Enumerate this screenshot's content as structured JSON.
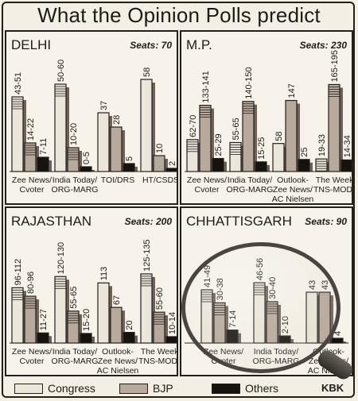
{
  "title": "What the Opinion Polls predict",
  "colors": {
    "congress": "#ece6da",
    "bjp": "#b7a99b",
    "others": "#15120f",
    "ink": "#231f1c"
  },
  "legend": [
    {
      "key": "congress",
      "label": "Congress"
    },
    {
      "key": "bjp",
      "label": "BJP"
    },
    {
      "key": "others",
      "label": "Others"
    }
  ],
  "credit": "KBK",
  "chart_data": [
    {
      "type": "bar",
      "title": "DELHI",
      "seats_label": "Seats: 70",
      "ylim": [
        0,
        70
      ],
      "groups": [
        {
          "label": [
            "Zee News/",
            "Cvoter"
          ],
          "bars": [
            {
              "party": "congress",
              "label": "43-51",
              "value": 47
            },
            {
              "party": "bjp",
              "label": "14-22",
              "value": 18
            },
            {
              "party": "others",
              "label": "7-11",
              "value": 9
            }
          ]
        },
        {
          "label": [
            "India Today/",
            "ORG-MARG"
          ],
          "bars": [
            {
              "party": "congress",
              "label": "50-60",
              "value": 55
            },
            {
              "party": "bjp",
              "label": "10-20",
              "value": 15
            },
            {
              "party": "others",
              "label": "0-5",
              "value": 3
            }
          ]
        },
        {
          "label": [
            "TOI/DRS"
          ],
          "bars": [
            {
              "party": "congress",
              "label": "37",
              "value": 37
            },
            {
              "party": "bjp",
              "label": "28",
              "value": 28
            },
            {
              "party": "others",
              "label": "5",
              "value": 5
            }
          ]
        },
        {
          "label": [
            "HT/CSDS"
          ],
          "bars": [
            {
              "party": "congress",
              "label": "58",
              "value": 58
            },
            {
              "party": "bjp",
              "label": "10",
              "value": 10
            },
            {
              "party": "others",
              "label": "2",
              "value": 2
            }
          ]
        }
      ]
    },
    {
      "type": "bar",
      "title": "M.P.",
      "seats_label": "Seats: 230",
      "ylim": [
        0,
        230
      ],
      "groups": [
        {
          "label": [
            "Zee News/",
            "Cvoter"
          ],
          "bars": [
            {
              "party": "congress",
              "label": "62-70",
              "value": 66
            },
            {
              "party": "bjp",
              "label": "133-141",
              "value": 137
            },
            {
              "party": "others",
              "label": "25-29",
              "value": 27
            }
          ]
        },
        {
          "label": [
            "India Today/",
            "ORG-MARG"
          ],
          "bars": [
            {
              "party": "congress",
              "label": "55-65",
              "value": 60
            },
            {
              "party": "bjp",
              "label": "140-150",
              "value": 145
            },
            {
              "party": "others",
              "label": "15-25",
              "value": 20
            }
          ]
        },
        {
          "label": [
            "Outlook-",
            "Zee News/",
            "AC Nielsen"
          ],
          "bars": [
            {
              "party": "congress",
              "label": "58",
              "value": 58
            },
            {
              "party": "bjp",
              "label": "147",
              "value": 147
            },
            {
              "party": "others",
              "label": "25",
              "value": 25
            }
          ]
        },
        {
          "label": [
            "The Week/",
            "TNS-MODE"
          ],
          "bars": [
            {
              "party": "congress",
              "label": "19-33",
              "value": 26
            },
            {
              "party": "bjp",
              "label": "165-195",
              "value": 180
            },
            {
              "party": "others",
              "label": "14-34",
              "value": 24
            }
          ]
        }
      ]
    },
    {
      "type": "bar",
      "title": "RAJASTHAN",
      "seats_label": "Seats: 200",
      "ylim": [
        0,
        200
      ],
      "groups": [
        {
          "label": [
            "Zee News/",
            "Cvoter"
          ],
          "bars": [
            {
              "party": "congress",
              "label": "96-112",
              "value": 104
            },
            {
              "party": "bjp",
              "label": "80-96",
              "value": 88
            },
            {
              "party": "others",
              "label": "11-27",
              "value": 19
            }
          ]
        },
        {
          "label": [
            "India Today/",
            "ORG-MARG"
          ],
          "bars": [
            {
              "party": "congress",
              "label": "120-130",
              "value": 125
            },
            {
              "party": "bjp",
              "label": "55-65",
              "value": 60
            },
            {
              "party": "others",
              "label": "15-20",
              "value": 18
            }
          ]
        },
        {
          "label": [
            "Outlook-",
            "Zee News/",
            "AC Nielsen"
          ],
          "bars": [
            {
              "party": "congress",
              "label": "113",
              "value": 113
            },
            {
              "party": "bjp",
              "label": "67",
              "value": 67
            },
            {
              "party": "others",
              "label": "20",
              "value": 20
            }
          ]
        },
        {
          "label": [
            "The Week/",
            "TNS-MODE"
          ],
          "bars": [
            {
              "party": "congress",
              "label": "125-135",
              "value": 130
            },
            {
              "party": "bjp",
              "label": "55-60",
              "value": 58
            },
            {
              "party": "others",
              "label": "10-14",
              "value": 12
            }
          ]
        }
      ]
    },
    {
      "type": "bar",
      "title": "CHHATTISGARH",
      "seats_label": "Seats: 90",
      "ylim": [
        0,
        90
      ],
      "groups": [
        {
          "label": [
            "Zee News/",
            "Cvoter"
          ],
          "bars": [
            {
              "party": "congress",
              "label": "41-49",
              "value": 45
            },
            {
              "party": "bjp",
              "label": "30-38",
              "value": 34
            },
            {
              "party": "others",
              "label": "7-14",
              "value": 11
            }
          ]
        },
        {
          "label": [
            "India Today/",
            "ORG-MARG"
          ],
          "bars": [
            {
              "party": "congress",
              "label": "46-56",
              "value": 51
            },
            {
              "party": "bjp",
              "label": "30-40",
              "value": 35
            },
            {
              "party": "others",
              "label": "2-10",
              "value": 6
            }
          ]
        },
        {
          "label": [
            "Outlook-",
            "Zee News/",
            "AC Nielsen"
          ],
          "bars": [
            {
              "party": "congress",
              "label": "43",
              "value": 43
            },
            {
              "party": "bjp",
              "label": "43",
              "value": 43
            },
            {
              "party": "others",
              "label": "4",
              "value": 4
            }
          ]
        }
      ]
    }
  ]
}
